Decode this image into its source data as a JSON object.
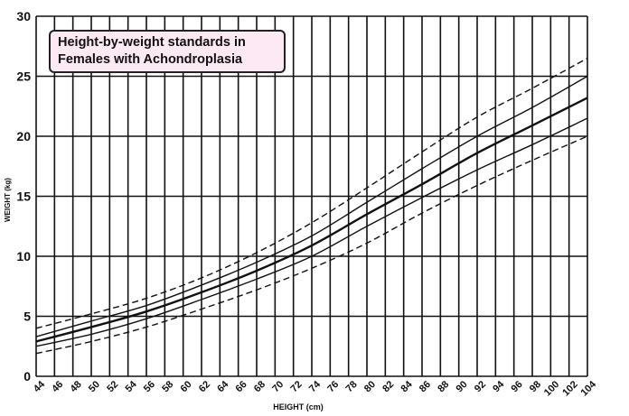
{
  "chart_data": {
    "type": "line",
    "title_lines": [
      "Height-by-weight standards in",
      "Females with Achondroplasia"
    ],
    "xlabel": "HEIGHT (cm)",
    "ylabel": "WEIGHT (kg)",
    "xlim": [
      44,
      104
    ],
    "ylim": [
      0,
      30
    ],
    "x_ticks": [
      "44",
      "46",
      "48",
      "50",
      "52",
      "54",
      "56",
      "58",
      "60",
      "62",
      "64",
      "66",
      "68",
      "70",
      "72",
      "74",
      "76",
      "78",
      "80",
      "82",
      "84",
      "86",
      "88",
      "90",
      "92",
      "94",
      "96",
      "98",
      "100",
      "102",
      "104"
    ],
    "y_ticks": [
      "0",
      "5",
      "10",
      "15",
      "20",
      "25",
      "30"
    ],
    "grid": true,
    "series": [
      {
        "style": "dashed",
        "x": [
          44,
          50,
          56,
          62,
          68,
          74,
          80,
          86,
          92,
          98,
          104
        ],
        "y": [
          4.0,
          5.2,
          6.5,
          8.2,
          10.3,
          12.8,
          15.7,
          18.7,
          21.6,
          24.0,
          26.5
        ]
      },
      {
        "style": "solid",
        "x": [
          44,
          50,
          56,
          62,
          68,
          74,
          80,
          86,
          92,
          98,
          104
        ],
        "y": [
          3.3,
          4.6,
          5.9,
          7.6,
          9.5,
          11.7,
          14.5,
          17.3,
          20.0,
          22.4,
          25.0
        ]
      },
      {
        "style": "solid-bold",
        "x": [
          44,
          50,
          56,
          62,
          68,
          74,
          80,
          86,
          92,
          98,
          104
        ],
        "y": [
          2.9,
          4.1,
          5.4,
          7.0,
          8.8,
          10.9,
          13.5,
          16.0,
          18.6,
          20.9,
          23.2
        ]
      },
      {
        "style": "solid",
        "x": [
          44,
          50,
          56,
          62,
          68,
          74,
          80,
          86,
          92,
          98,
          104
        ],
        "y": [
          2.5,
          3.5,
          4.8,
          6.4,
          8.1,
          10.0,
          12.5,
          14.9,
          17.2,
          19.3,
          21.5
        ]
      },
      {
        "style": "dashed",
        "x": [
          44,
          50,
          56,
          62,
          68,
          74,
          80,
          86,
          92,
          98,
          104
        ],
        "y": [
          1.9,
          2.9,
          4.1,
          5.6,
          7.2,
          9.0,
          11.1,
          13.6,
          15.9,
          18.0,
          20.0
        ]
      }
    ],
    "colors": {
      "line": "#111111",
      "grid": "#111111",
      "title_bg": "#fde9f3"
    }
  }
}
